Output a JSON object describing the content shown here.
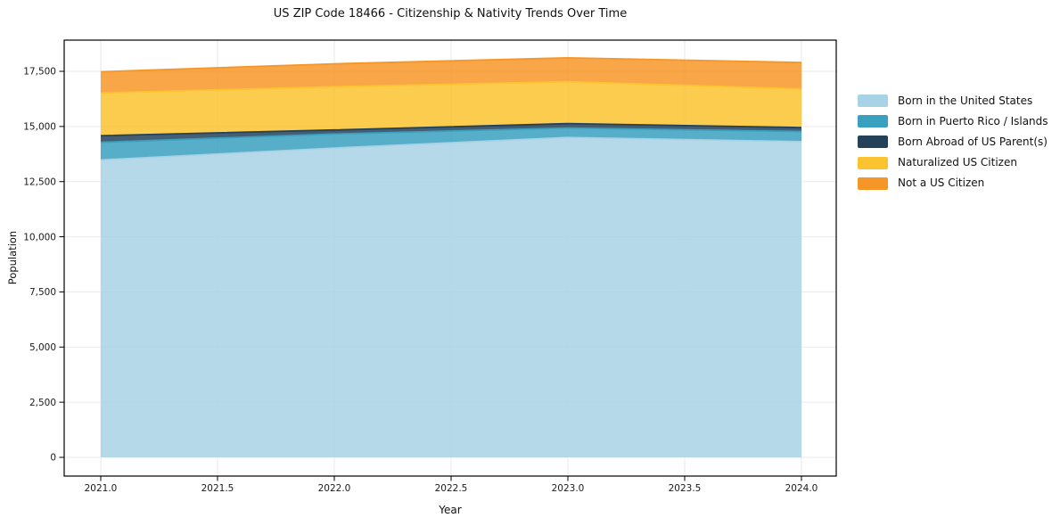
{
  "title": "US ZIP Code 18466 - Citizenship & Nativity Trends Over Time",
  "chart_data": {
    "type": "area",
    "stacked": true,
    "title": "US ZIP Code 18466 - Citizenship & Nativity Trends Over Time",
    "xlabel": "Year",
    "ylabel": "Population",
    "x": [
      2021,
      2022,
      2023,
      2024
    ],
    "series": [
      {
        "name": "Born in the United States",
        "color": "#a8d2e5",
        "values": [
          13480,
          14020,
          14500,
          14310
        ]
      },
      {
        "name": "Born in Puerto Rico / Islands",
        "color": "#3aa0c0",
        "values": [
          800,
          640,
          430,
          460
        ]
      },
      {
        "name": "Born Abroad of US Parent(s)",
        "color": "#23425a",
        "values": [
          300,
          180,
          200,
          180
        ]
      },
      {
        "name": "Naturalized US Citizen",
        "color": "#fcc330",
        "values": [
          1940,
          1960,
          1900,
          1750
        ]
      },
      {
        "name": "Not a US Citizen",
        "color": "#f79628",
        "values": [
          960,
          1040,
          1080,
          1200
        ]
      }
    ],
    "totals": [
      17480,
      17840,
      18110,
      17900
    ],
    "xticks": [
      2021.0,
      2021.5,
      2022.0,
      2022.5,
      2023.0,
      2023.5,
      2024.0
    ],
    "xtick_labels": [
      "2021.0",
      "2021.5",
      "2022.0",
      "2022.5",
      "2023.0",
      "2023.5",
      "2024.0"
    ],
    "yticks": [
      0,
      2500,
      5000,
      7500,
      10000,
      12500,
      15000,
      17500
    ],
    "ytick_labels": [
      "0",
      "2,500",
      "5,000",
      "7,500",
      "10,000",
      "12,500",
      "15,000",
      "17,500"
    ],
    "ylim": [
      0,
      18110
    ],
    "grid": true,
    "fill_alpha": 0.85,
    "legend_position": "right",
    "grid_color": "#e9e9e9",
    "spine_color": "#000000"
  }
}
